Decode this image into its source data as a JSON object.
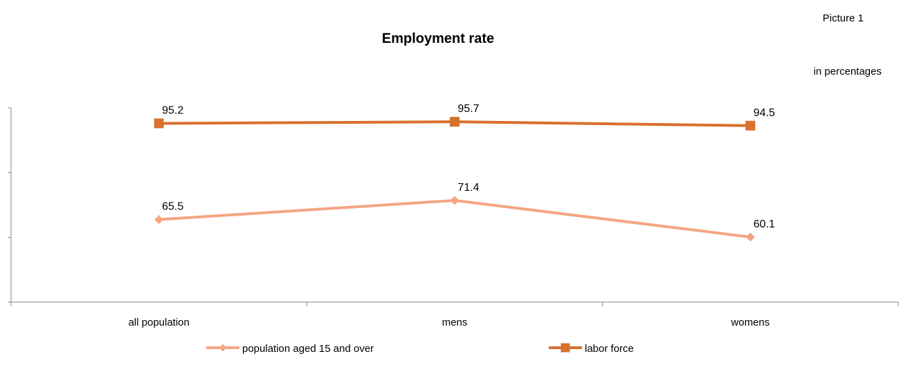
{
  "header": {
    "picture_label": "Picture 1",
    "units_label": "in percentages"
  },
  "chart_data": {
    "type": "line",
    "title": "Employment rate",
    "xlabel": "",
    "ylabel": "",
    "categories": [
      "all population",
      "mens",
      "womens"
    ],
    "series": [
      {
        "name": "population aged 15 and over",
        "values": [
          65.5,
          71.4,
          60.1
        ],
        "color": "#F4A582",
        "marker": "diamond"
      },
      {
        "name": "labor force",
        "values": [
          95.2,
          95.7,
          94.5
        ],
        "color": "#D8702E",
        "marker": "square"
      }
    ],
    "ylim": [
      40,
      100
    ],
    "y_tick_labels_shown": false,
    "grid": false,
    "legend": "bottom"
  }
}
